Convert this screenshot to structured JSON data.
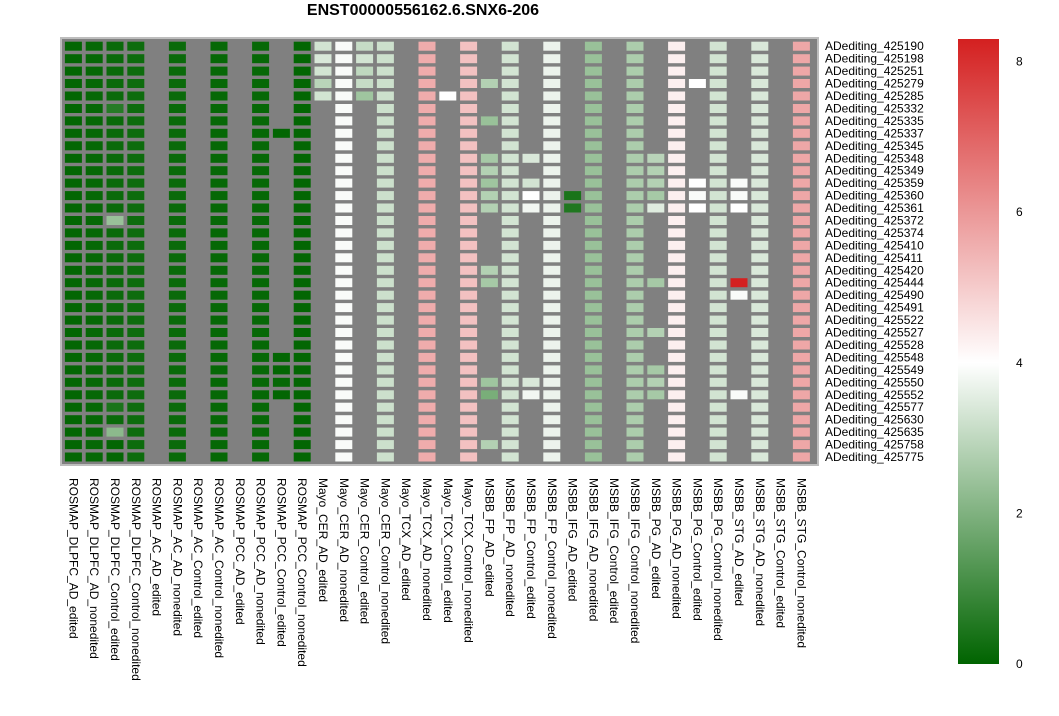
{
  "chart_data": {
    "type": "heatmap",
    "title": "ENST00000556162.6.SNX6-206",
    "columns": [
      "ROSMAP_DLPFC_AD_edited",
      "ROSMAP_DLPFC_AD_nonedited",
      "ROSMAP_DLPFC_Control_edited",
      "ROSMAP_DLPFC_Control_nonedited",
      "ROSMAP_AC_AD_edited",
      "ROSMAP_AC_AD_nonedited",
      "ROSMAP_AC_Control_edited",
      "ROSMAP_AC_Control_nonedited",
      "ROSMAP_PCC_AD_edited",
      "ROSMAP_PCC_AD_nonedited",
      "ROSMAP_PCC_Control_edited",
      "ROSMAP_PCC_Control_nonedited",
      "Mayo_CER_AD_edited",
      "Mayo_CER_AD_nonedited",
      "Mayo_CER_Control_edited",
      "Mayo_CER_Control_nonedited",
      "Mayo_TCX_AD_edited",
      "Mayo_TCX_AD_nonedited",
      "Mayo_TCX_Control_edited",
      "Mayo_TCX_Control_nonedited",
      "MSBB_FP_AD_edited",
      "MSBB_FP_AD_nonedited",
      "MSBB_FP_Control_edited",
      "MSBB_FP_Control_nonedited",
      "MSBB_IFG_AD_edited",
      "MSBB_IFG_AD_nonedited",
      "MSBB_IFG_Control_edited",
      "MSBB_IFG_Control_nonedited",
      "MSBB_PG_AD_edited",
      "MSBB_PG_AD_nonedited",
      "MSBB_PG_Control_edited",
      "MSBB_PG_Control_nonedited",
      "MSBB_STG_AD_edited",
      "MSBB_STG_AD_nonedited",
      "MSBB_STG_Control_edited",
      "MSBB_STG_Control_nonedited"
    ],
    "rows": [
      "ADediting_425190",
      "ADediting_425198",
      "ADediting_425251",
      "ADediting_425279",
      "ADediting_425285",
      "ADediting_425332",
      "ADediting_425335",
      "ADediting_425337",
      "ADediting_425345",
      "ADediting_425348",
      "ADediting_425349",
      "ADediting_425359",
      "ADediting_425360",
      "ADediting_425361",
      "ADediting_425372",
      "ADediting_425374",
      "ADediting_425410",
      "ADediting_425411",
      "ADediting_425420",
      "ADediting_425444",
      "ADediting_425490",
      "ADediting_425491",
      "ADediting_425522",
      "ADediting_425527",
      "ADediting_425528",
      "ADediting_425548",
      "ADediting_425549",
      "ADediting_425550",
      "ADediting_425552",
      "ADediting_425577",
      "ADediting_425630",
      "ADediting_425635",
      "ADediting_425758",
      "ADediting_425775"
    ],
    "column_defaults": [
      0.05,
      0.1,
      0.15,
      0.2,
      null,
      0.15,
      null,
      0.1,
      null,
      0.1,
      null,
      0.05,
      null,
      3.9,
      null,
      3.2,
      null,
      5.6,
      null,
      5.2,
      null,
      3.3,
      null,
      3.7,
      null,
      2.4,
      null,
      2.7,
      null,
      4.3,
      null,
      3.3,
      null,
      3.4,
      null,
      5.7
    ],
    "overrides": [
      {
        "row": 0,
        "col": 12,
        "value": 3.3
      },
      {
        "row": 0,
        "col": 14,
        "value": 3.1
      },
      {
        "row": 1,
        "col": 12,
        "value": 3.4
      },
      {
        "row": 1,
        "col": 14,
        "value": 3.3
      },
      {
        "row": 2,
        "col": 12,
        "value": 3.3
      },
      {
        "row": 2,
        "col": 14,
        "value": 3.0
      },
      {
        "row": 3,
        "col": 12,
        "value": 2.9
      },
      {
        "row": 3,
        "col": 14,
        "value": 3.1
      },
      {
        "row": 3,
        "col": 20,
        "value": 2.8
      },
      {
        "row": 3,
        "col": 30,
        "value": 4.0
      },
      {
        "row": 4,
        "col": 12,
        "value": 3.3
      },
      {
        "row": 4,
        "col": 14,
        "value": 2.5
      },
      {
        "row": 4,
        "col": 18,
        "value": 4.0
      },
      {
        "row": 5,
        "col": 2,
        "value": 0.6
      },
      {
        "row": 6,
        "col": 20,
        "value": 2.4
      },
      {
        "row": 7,
        "col": 10,
        "value": 0.05
      },
      {
        "row": 9,
        "col": 20,
        "value": 2.6
      },
      {
        "row": 9,
        "col": 22,
        "value": 3.4
      },
      {
        "row": 9,
        "col": 28,
        "value": 2.9
      },
      {
        "row": 10,
        "col": 20,
        "value": 2.8
      },
      {
        "row": 10,
        "col": 28,
        "value": 2.8
      },
      {
        "row": 11,
        "col": 20,
        "value": 2.5
      },
      {
        "row": 11,
        "col": 22,
        "value": 3.3
      },
      {
        "row": 11,
        "col": 28,
        "value": 2.8
      },
      {
        "row": 11,
        "col": 30,
        "value": 4.0
      },
      {
        "row": 11,
        "col": 32,
        "value": 3.9
      },
      {
        "row": 12,
        "col": 20,
        "value": 2.8
      },
      {
        "row": 12,
        "col": 22,
        "value": 4.0
      },
      {
        "row": 12,
        "col": 24,
        "value": 0.4
      },
      {
        "row": 12,
        "col": 28,
        "value": 2.6
      },
      {
        "row": 12,
        "col": 30,
        "value": 3.9
      },
      {
        "row": 12,
        "col": 32,
        "value": 3.9
      },
      {
        "row": 13,
        "col": 20,
        "value": 2.8
      },
      {
        "row": 13,
        "col": 22,
        "value": 3.8
      },
      {
        "row": 13,
        "col": 24,
        "value": 0.5
      },
      {
        "row": 13,
        "col": 28,
        "value": 3.5
      },
      {
        "row": 13,
        "col": 30,
        "value": 4.0
      },
      {
        "row": 13,
        "col": 32,
        "value": 4.0
      },
      {
        "row": 14,
        "col": 2,
        "value": 2.4
      },
      {
        "row": 18,
        "col": 20,
        "value": 2.8
      },
      {
        "row": 19,
        "col": 20,
        "value": 2.6
      },
      {
        "row": 19,
        "col": 28,
        "value": 2.6
      },
      {
        "row": 19,
        "col": 32,
        "value": 8.3
      },
      {
        "row": 20,
        "col": 32,
        "value": 3.9
      },
      {
        "row": 23,
        "col": 28,
        "value": 2.8
      },
      {
        "row": 25,
        "col": 10,
        "value": 0.05
      },
      {
        "row": 26,
        "col": 10,
        "value": 0.05
      },
      {
        "row": 26,
        "col": 28,
        "value": 2.6
      },
      {
        "row": 27,
        "col": 10,
        "value": 0.1
      },
      {
        "row": 27,
        "col": 20,
        "value": 2.5
      },
      {
        "row": 27,
        "col": 22,
        "value": 3.4
      },
      {
        "row": 27,
        "col": 28,
        "value": 2.8
      },
      {
        "row": 28,
        "col": 10,
        "value": 0.05
      },
      {
        "row": 28,
        "col": 20,
        "value": 1.9
      },
      {
        "row": 28,
        "col": 22,
        "value": 3.8
      },
      {
        "row": 28,
        "col": 28,
        "value": 2.6
      },
      {
        "row": 28,
        "col": 32,
        "value": 3.9
      },
      {
        "row": 29,
        "col": 2,
        "value": 0.4
      },
      {
        "row": 31,
        "col": 2,
        "value": 2.2
      },
      {
        "row": 32,
        "col": 2,
        "value": 0.05
      },
      {
        "row": 32,
        "col": 20,
        "value": 2.8
      },
      {
        "row": 33,
        "col": 2,
        "value": 0.05
      }
    ],
    "na_color": "#808080",
    "colorscale": {
      "low": "#006400",
      "mid": "#ffffff",
      "high": "#d42020",
      "min": 0,
      "mid_value": 4,
      "max": 8.3
    },
    "colorbar_ticks": [
      0,
      2,
      4,
      6,
      8
    ]
  }
}
